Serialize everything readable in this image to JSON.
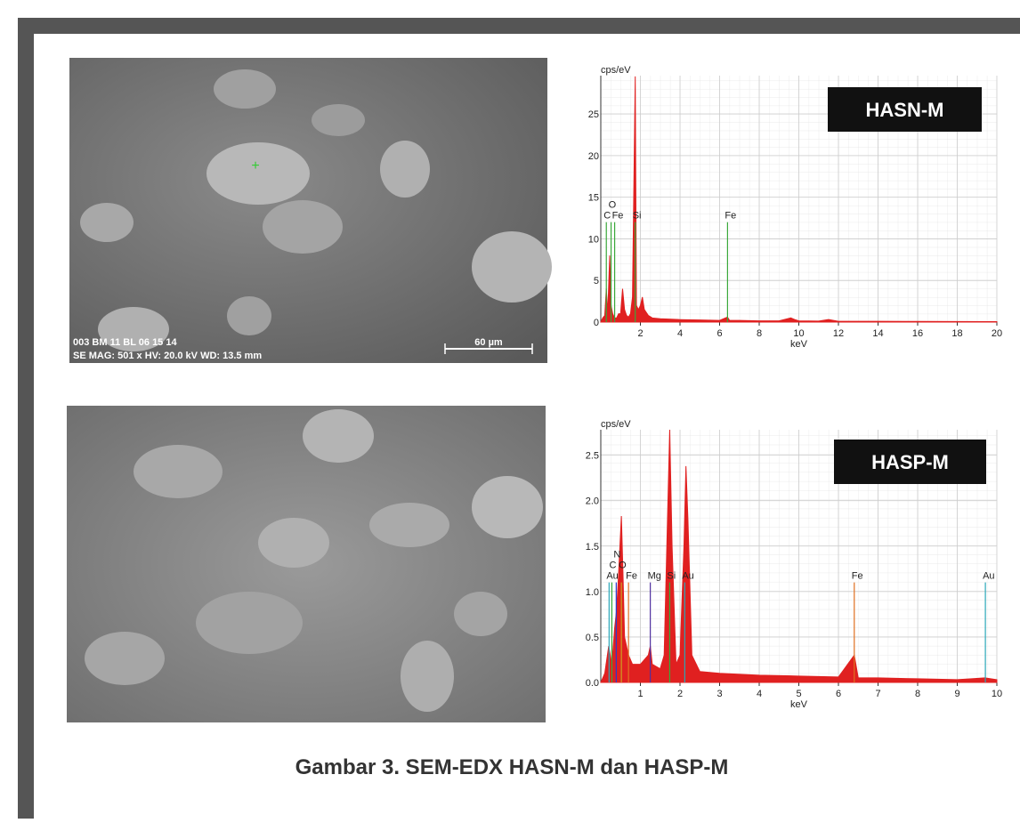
{
  "images": [
    {
      "info": [
        "003 BM 11 BL 06 15 14",
        "SE MAG: 501 x HV: 20.0 kV WD: 13.5 mm"
      ],
      "scale_bar": "60 µm"
    }
  ],
  "chart_data": [
    {
      "type": "spectrum",
      "title": "HASN-M",
      "y_label": "cps/eV",
      "x_label": "keV",
      "color": "#e02020",
      "x": [
        0,
        0.1,
        0.2,
        0.28,
        0.35,
        0.45,
        0.52,
        0.6,
        0.7,
        0.8,
        0.9,
        1.0,
        1.1,
        1.2,
        1.3,
        1.4,
        1.5,
        1.6,
        1.74,
        1.8,
        1.9,
        2.0,
        2.1,
        2.2,
        2.4,
        2.6,
        3,
        4,
        5,
        6,
        6.4,
        6.5,
        7,
        8,
        9,
        9.6,
        9.8,
        10,
        11,
        11.5,
        12,
        14,
        16,
        18,
        20
      ],
      "values": [
        0,
        0.5,
        0.8,
        4,
        1,
        8,
        2,
        1,
        0.5,
        0.5,
        1,
        1,
        4,
        1.5,
        0.8,
        0.6,
        1,
        3,
        29.5,
        2,
        1.5,
        2,
        3,
        1.5,
        0.8,
        0.5,
        0.4,
        0.3,
        0.25,
        0.2,
        0.6,
        0.2,
        0.2,
        0.15,
        0.15,
        0.5,
        0.3,
        0.15,
        0.12,
        0.3,
        0.1,
        0.1,
        0.08,
        0.07,
        0.05
      ],
      "element_lines": [
        {
          "label": "C",
          "x": 0.28,
          "height": 12,
          "color": "#3aa83a"
        },
        {
          "label": "O",
          "x": 0.52,
          "height": 12,
          "color": "#3aa83a"
        },
        {
          "label": "Fe",
          "x": 0.7,
          "height": 12,
          "color": "#3aa83a"
        },
        {
          "label": "Si",
          "x": 1.74,
          "height": 12,
          "color": "#3aa83a"
        },
        {
          "label": "Fe",
          "x": 6.4,
          "height": 12,
          "color": "#3aa83a"
        }
      ],
      "xlim": [
        0,
        20
      ],
      "ylim": [
        0,
        29.6
      ],
      "xticks": [
        2,
        4,
        6,
        8,
        10,
        12,
        14,
        16,
        18,
        20
      ],
      "yticks": [
        0,
        5,
        10,
        15,
        20,
        25
      ],
      "grid": true
    },
    {
      "type": "spectrum",
      "title": "HASP-M",
      "y_label": "cps/eV",
      "x_label": "keV",
      "color": "#e02020",
      "x": [
        0,
        0.1,
        0.2,
        0.28,
        0.35,
        0.4,
        0.45,
        0.52,
        0.56,
        0.6,
        0.7,
        0.8,
        1,
        1.2,
        1.25,
        1.3,
        1.5,
        1.6,
        1.74,
        1.8,
        1.9,
        2.0,
        2.1,
        2.15,
        2.2,
        2.3,
        2.5,
        3,
        4,
        5,
        6,
        6.4,
        6.5,
        7,
        8,
        9,
        9.7,
        10
      ],
      "values": [
        0,
        0.1,
        0.4,
        0.2,
        0.6,
        0.8,
        1.2,
        1.83,
        1.2,
        0.5,
        0.3,
        0.2,
        0.2,
        0.3,
        0.4,
        0.2,
        0.15,
        0.3,
        2.78,
        1.5,
        0.2,
        0.3,
        1.5,
        2.38,
        1.8,
        0.3,
        0.12,
        0.1,
        0.08,
        0.07,
        0.06,
        0.3,
        0.05,
        0.05,
        0.04,
        0.03,
        0.05,
        0.03
      ],
      "element_lines": [
        {
          "label": "Au",
          "x": 0.21,
          "height": 1.1,
          "color": "#2aa8b8"
        },
        {
          "label": "C",
          "x": 0.28,
          "height": 1.1,
          "color": "#3aa83a"
        },
        {
          "label": "N",
          "x": 0.39,
          "height": 1.1,
          "color": "#2a3ad0"
        },
        {
          "label": "O",
          "x": 0.52,
          "height": 1.1,
          "color": "#d0a020"
        },
        {
          "label": "Fe",
          "x": 0.7,
          "height": 1.1,
          "color": "#e07020"
        },
        {
          "label": "Mg",
          "x": 1.25,
          "height": 1.1,
          "color": "#5030a0"
        },
        {
          "label": "Si",
          "x": 1.74,
          "height": 1.1,
          "color": "#3aa83a"
        },
        {
          "label": "Au",
          "x": 2.12,
          "height": 1.1,
          "color": "#2aa8b8"
        },
        {
          "label": "Fe",
          "x": 6.4,
          "height": 1.1,
          "color": "#e07020"
        },
        {
          "label": "Au",
          "x": 9.71,
          "height": 1.1,
          "color": "#2aa8b8"
        }
      ],
      "xlim": [
        0,
        10
      ],
      "ylim": [
        0,
        2.78
      ],
      "xticks": [
        1,
        2,
        3,
        4,
        5,
        6,
        7,
        8,
        9,
        10
      ],
      "yticks": [
        {
          "value": 0,
          "label": "0.0"
        },
        0.5,
        {
          "value": 1,
          "label": "1.0"
        },
        1.5,
        {
          "value": 2,
          "label": "2.0"
        },
        2.5
      ],
      "grid": true
    }
  ],
  "caption": "Gambar 3. SEM-EDX HASN-M dan HASP-M"
}
